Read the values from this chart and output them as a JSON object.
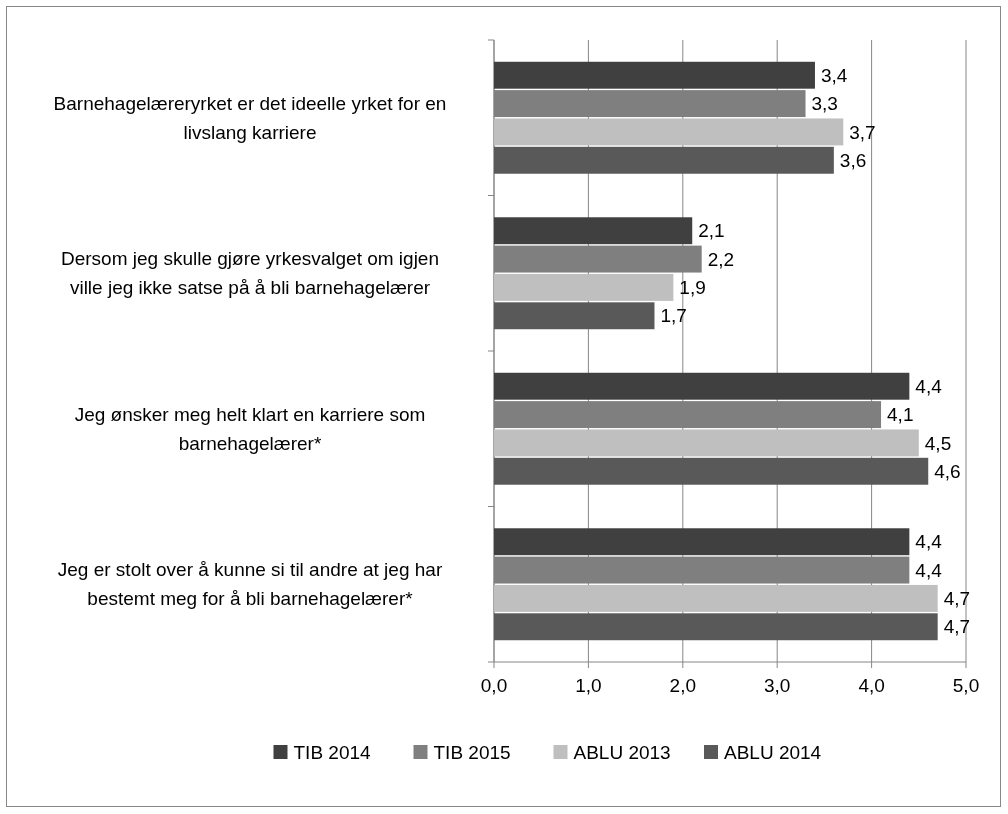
{
  "chart_data": {
    "type": "bar",
    "orientation": "horizontal",
    "categories": [
      "Barnehagelæreryrket er det ideelle yrket for en livslang karriere",
      "Dersom jeg skulle gjøre yrkesvalget om igjen ville jeg ikke satse på å bli barnehagelærer",
      "Jeg ønsker meg helt klart en karriere som barnehagelærer*",
      "Jeg er stolt over å kunne si til andre at jeg har bestemt meg for å bli barnehagelærer*"
    ],
    "series": [
      {
        "name": "TIB 2014",
        "color": "#404040",
        "values": [
          3.4,
          2.1,
          4.4,
          4.4
        ],
        "value_labels": [
          "3,4",
          "2,1",
          "4,4",
          "4,4"
        ]
      },
      {
        "name": "TIB 2015",
        "color": "#7f7f7f",
        "values": [
          3.3,
          2.2,
          4.1,
          4.4
        ],
        "value_labels": [
          "3,3",
          "2,2",
          "4,1",
          "4,4"
        ]
      },
      {
        "name": "ABLU 2013",
        "color": "#bfbfbf",
        "values": [
          3.7,
          1.9,
          4.5,
          4.7
        ],
        "value_labels": [
          "3,7",
          "1,9",
          "4,5",
          "4,7"
        ]
      },
      {
        "name": "ABLU 2014",
        "color": "#595959",
        "values": [
          3.6,
          1.7,
          4.6,
          4.7
        ],
        "value_labels": [
          "3,6",
          "1,7",
          "4,6",
          "4,7"
        ]
      }
    ],
    "xlim": [
      0,
      5
    ],
    "xticks": [
      {
        "value": 0,
        "label": "0,0"
      },
      {
        "value": 1,
        "label": "1,0"
      },
      {
        "value": 2,
        "label": "2,0"
      },
      {
        "value": 3,
        "label": "3,0"
      },
      {
        "value": 4,
        "label": "4,0"
      },
      {
        "value": 5,
        "label": "5,0"
      }
    ],
    "grid": "x",
    "legend": "bottom"
  }
}
